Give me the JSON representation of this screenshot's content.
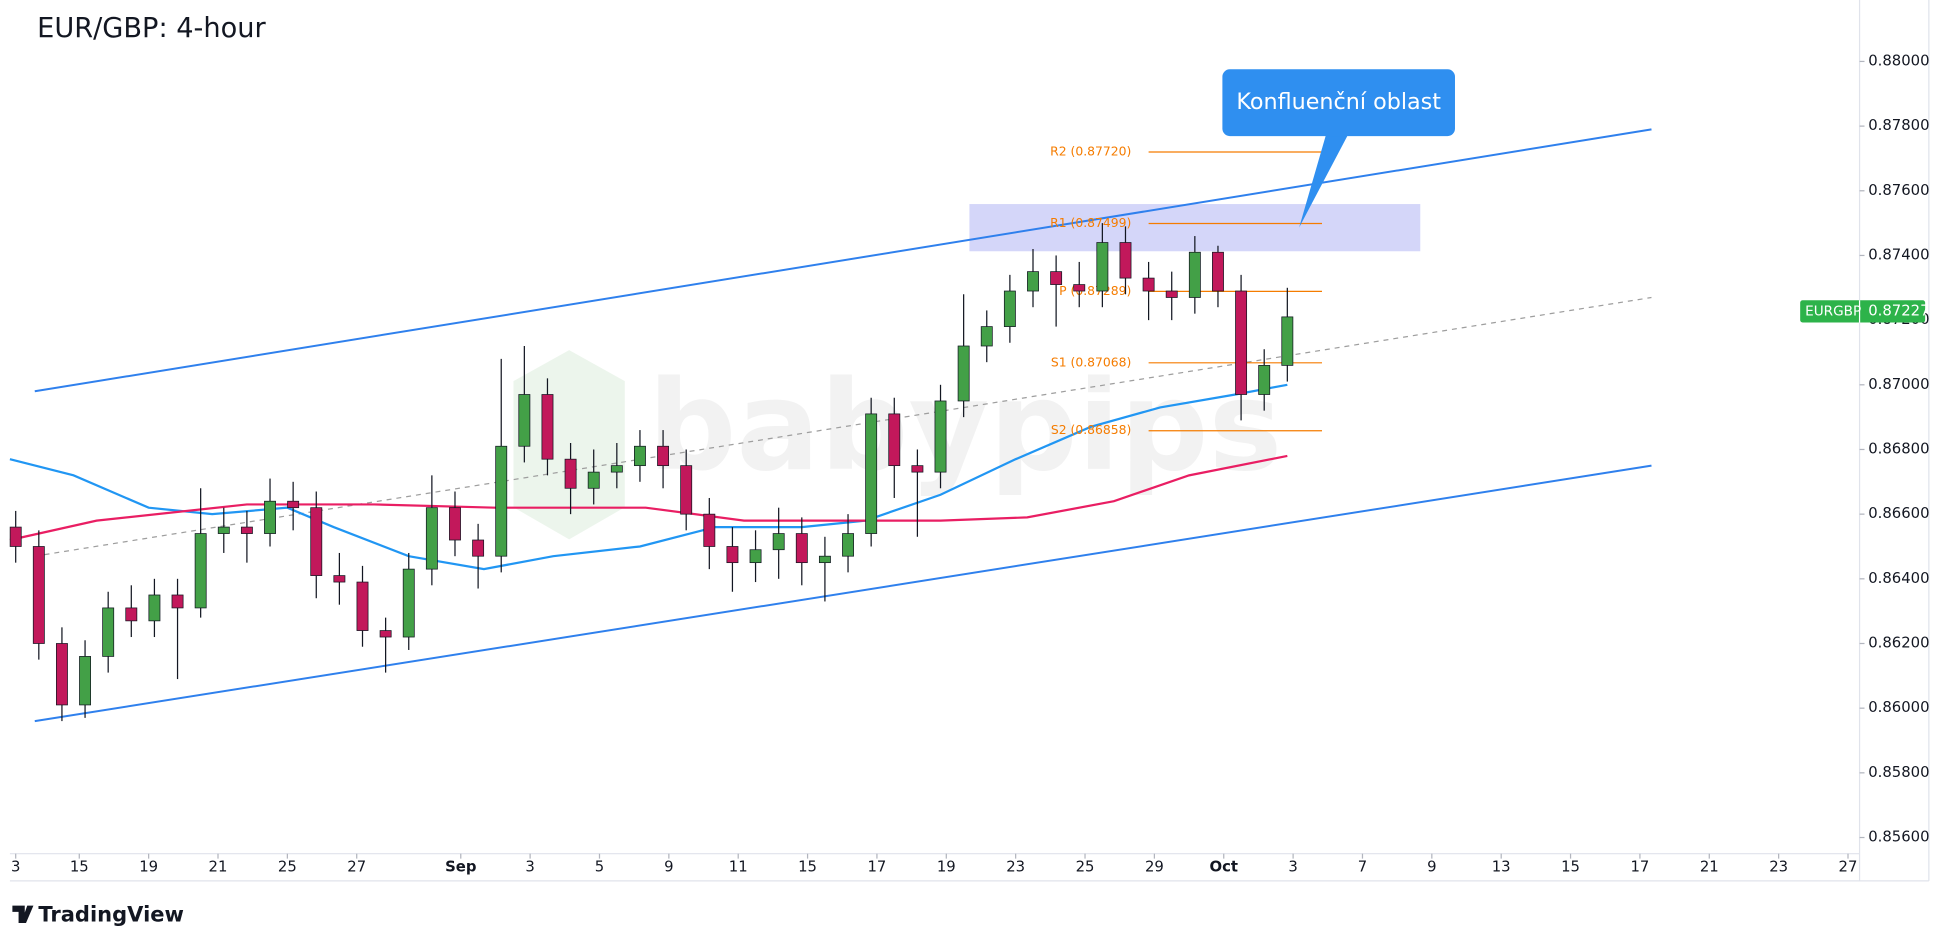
{
  "chart_data": {
    "type": "candlestick",
    "title": "EUR/GBP: 4-hour",
    "watermark": "babypips",
    "footer": "TradingView",
    "up_color": "#43a047",
    "down_color": "#c2185b",
    "grid": false,
    "xlim": [
      0,
      320
    ],
    "ylim": [
      0.8555,
      0.8819
    ],
    "xticks": [
      {
        "value": 1,
        "label": "3"
      },
      {
        "value": 12,
        "label": "15"
      },
      {
        "value": 24,
        "label": "19"
      },
      {
        "value": 36,
        "label": "21"
      },
      {
        "value": 48,
        "label": "25"
      },
      {
        "value": 60,
        "label": "27"
      },
      {
        "value": 78,
        "label": "Sep"
      },
      {
        "value": 90,
        "label": "3"
      },
      {
        "value": 102,
        "label": "5"
      },
      {
        "value": 114,
        "label": "9"
      },
      {
        "value": 126,
        "label": "11"
      },
      {
        "value": 138,
        "label": "15"
      },
      {
        "value": 150,
        "label": "17"
      },
      {
        "value": 162,
        "label": "19"
      },
      {
        "value": 174,
        "label": "23"
      },
      {
        "value": 186,
        "label": "25"
      },
      {
        "value": 198,
        "label": "29"
      },
      {
        "value": 210,
        "label": "Oct"
      },
      {
        "value": 222,
        "label": "3"
      },
      {
        "value": 234,
        "label": "7"
      },
      {
        "value": 246,
        "label": "9"
      },
      {
        "value": 258,
        "label": "13"
      },
      {
        "value": 270,
        "label": "15"
      },
      {
        "value": 282,
        "label": "17"
      },
      {
        "value": 294,
        "label": "21"
      },
      {
        "value": 306,
        "label": "23"
      },
      {
        "value": 318,
        "label": "27"
      }
    ],
    "yticks": [
      {
        "value": 0.856,
        "label": "0.85600"
      },
      {
        "value": 0.858,
        "label": "0.85800"
      },
      {
        "value": 0.86,
        "label": "0.86000"
      },
      {
        "value": 0.862,
        "label": "0.86200"
      },
      {
        "value": 0.864,
        "label": "0.86400"
      },
      {
        "value": 0.866,
        "label": "0.86600"
      },
      {
        "value": 0.868,
        "label": "0.86800"
      },
      {
        "value": 0.87,
        "label": "0.87000"
      },
      {
        "value": 0.872,
        "label": "0.87200"
      },
      {
        "value": 0.874,
        "label": "0.87400"
      },
      {
        "value": 0.876,
        "label": "0.87600"
      },
      {
        "value": 0.878,
        "label": "0.87800"
      },
      {
        "value": 0.88,
        "label": "0.88000"
      }
    ],
    "candles": {
      "x": [
        1,
        5,
        9,
        13,
        17,
        21,
        25,
        29,
        33,
        37,
        41,
        45,
        49,
        53,
        57,
        61,
        65,
        69,
        73,
        77,
        81,
        85,
        89,
        93,
        97,
        101,
        105,
        109,
        113,
        117,
        121,
        125,
        129,
        133,
        137,
        141,
        145,
        149,
        153,
        157,
        161,
        165,
        169,
        173,
        177,
        181,
        185,
        189,
        193,
        197,
        201,
        205,
        209,
        213,
        217,
        221
      ],
      "open": [
        0.8656,
        0.865,
        0.862,
        0.8601,
        0.8616,
        0.8631,
        0.8627,
        0.8635,
        0.8631,
        0.8654,
        0.8656,
        0.8654,
        0.8664,
        0.8662,
        0.8641,
        0.8639,
        0.8624,
        0.8622,
        0.8643,
        0.8662,
        0.8652,
        0.8647,
        0.8681,
        0.8697,
        0.8677,
        0.8668,
        0.8673,
        0.8675,
        0.8681,
        0.8675,
        0.866,
        0.865,
        0.8645,
        0.8649,
        0.8654,
        0.8645,
        0.8647,
        0.8654,
        0.8691,
        0.8675,
        0.8673,
        0.8695,
        0.8712,
        0.8718,
        0.8729,
        0.8735,
        0.8731,
        0.8729,
        0.8744,
        0.8733,
        0.8729,
        0.8727,
        0.8741,
        0.8729,
        0.8697,
        0.8706
      ],
      "high": [
        0.8661,
        0.8655,
        0.8625,
        0.8621,
        0.8636,
        0.8638,
        0.864,
        0.864,
        0.8668,
        0.8662,
        0.8661,
        0.8671,
        0.867,
        0.8667,
        0.8648,
        0.8644,
        0.8628,
        0.8648,
        0.8672,
        0.8667,
        0.8657,
        0.8708,
        0.8712,
        0.8702,
        0.8682,
        0.868,
        0.8682,
        0.8686,
        0.8686,
        0.868,
        0.8665,
        0.8656,
        0.8655,
        0.8662,
        0.8659,
        0.8653,
        0.866,
        0.8696,
        0.8696,
        0.868,
        0.87,
        0.8728,
        0.8723,
        0.8734,
        0.8742,
        0.874,
        0.8738,
        0.875,
        0.8749,
        0.8738,
        0.8735,
        0.8746,
        0.8743,
        0.8734,
        0.8711,
        0.873
      ],
      "low": [
        0.8645,
        0.8615,
        0.8596,
        0.8597,
        0.8611,
        0.8622,
        0.8622,
        0.8609,
        0.8628,
        0.8648,
        0.8645,
        0.865,
        0.8655,
        0.8634,
        0.8632,
        0.8619,
        0.8611,
        0.8618,
        0.8638,
        0.8647,
        0.8637,
        0.8642,
        0.8676,
        0.8672,
        0.866,
        0.8663,
        0.8668,
        0.867,
        0.8668,
        0.8655,
        0.8643,
        0.8636,
        0.8639,
        0.864,
        0.8638,
        0.8633,
        0.8642,
        0.865,
        0.8665,
        0.8653,
        0.8668,
        0.869,
        0.8707,
        0.8713,
        0.8724,
        0.8718,
        0.8724,
        0.8724,
        0.8728,
        0.872,
        0.872,
        0.8722,
        0.8724,
        0.8689,
        0.8692,
        0.8701
      ],
      "close": [
        0.865,
        0.862,
        0.8601,
        0.8616,
        0.8631,
        0.8627,
        0.8635,
        0.8631,
        0.8654,
        0.8656,
        0.8654,
        0.8664,
        0.8662,
        0.8641,
        0.8639,
        0.8624,
        0.8622,
        0.8643,
        0.8662,
        0.8652,
        0.8647,
        0.8681,
        0.8697,
        0.8677,
        0.8668,
        0.8673,
        0.8675,
        0.8681,
        0.8675,
        0.866,
        0.865,
        0.8645,
        0.8649,
        0.8654,
        0.8645,
        0.8647,
        0.8654,
        0.8691,
        0.8675,
        0.8673,
        0.8695,
        0.8712,
        0.8718,
        0.8729,
        0.8735,
        0.8731,
        0.8729,
        0.8744,
        0.8733,
        0.8729,
        0.8727,
        0.8741,
        0.8729,
        0.8697,
        0.8706,
        0.8721
      ]
    },
    "overlays": [
      {
        "color": "#2196f3",
        "x": [
          0,
          11,
          24,
          35,
          48,
          56,
          69,
          82,
          94,
          109,
          122,
          137,
          148,
          161,
          174,
          187,
          199,
          212,
          221
        ],
        "values": [
          0.8677,
          0.8672,
          0.8662,
          0.866,
          0.8662,
          0.8656,
          0.8647,
          0.8643,
          0.8647,
          0.865,
          0.8656,
          0.8656,
          0.8658,
          0.8666,
          0.8677,
          0.8687,
          0.8693,
          0.8697,
          0.87
        ]
      },
      {
        "color": "#e91e63",
        "x": [
          0,
          15,
          41,
          63,
          84,
          110,
          127,
          148,
          161,
          176,
          191,
          204,
          221
        ],
        "values": [
          0.8652,
          0.8658,
          0.8663,
          0.8663,
          0.8662,
          0.8662,
          0.8658,
          0.8658,
          0.8658,
          0.8659,
          0.8664,
          0.8672,
          0.8678
        ]
      }
    ],
    "trendlines": [
      {
        "color": "#2f80ed",
        "dashed": false,
        "x": [
          4.3,
          284
        ],
        "values": [
          0.8698,
          0.8779
        ]
      },
      {
        "color": "#2f80ed",
        "dashed": false,
        "x": [
          4.3,
          284
        ],
        "values": [
          0.8596,
          0.8675
        ]
      },
      {
        "color": "#9e9e9e",
        "dashed": true,
        "x": [
          4.3,
          284
        ],
        "values": [
          0.8647,
          0.8727
        ]
      }
    ],
    "pivot_color": "#f57c00",
    "pivot_x": [
      197,
      227
    ],
    "pivots": [
      {
        "label": "R2 (0.87720)",
        "value": 0.8772
      },
      {
        "label": "R1 (0.87499)",
        "value": 0.87499
      },
      {
        "label": "P (0.87289)",
        "value": 0.87289
      },
      {
        "label": "S1 (0.87068)",
        "value": 0.87068
      },
      {
        "label": "S2 (0.86858)",
        "value": 0.86858
      }
    ],
    "zone": {
      "color": "#c5c8f7",
      "xlim": [
        166,
        244
      ],
      "ylim": [
        0.87413,
        0.87559
      ]
    },
    "annotation": "Konfluenční oblast",
    "last_price": {
      "symbol": "EURGBP",
      "value": 0.87227,
      "color": "#2db34a"
    }
  }
}
